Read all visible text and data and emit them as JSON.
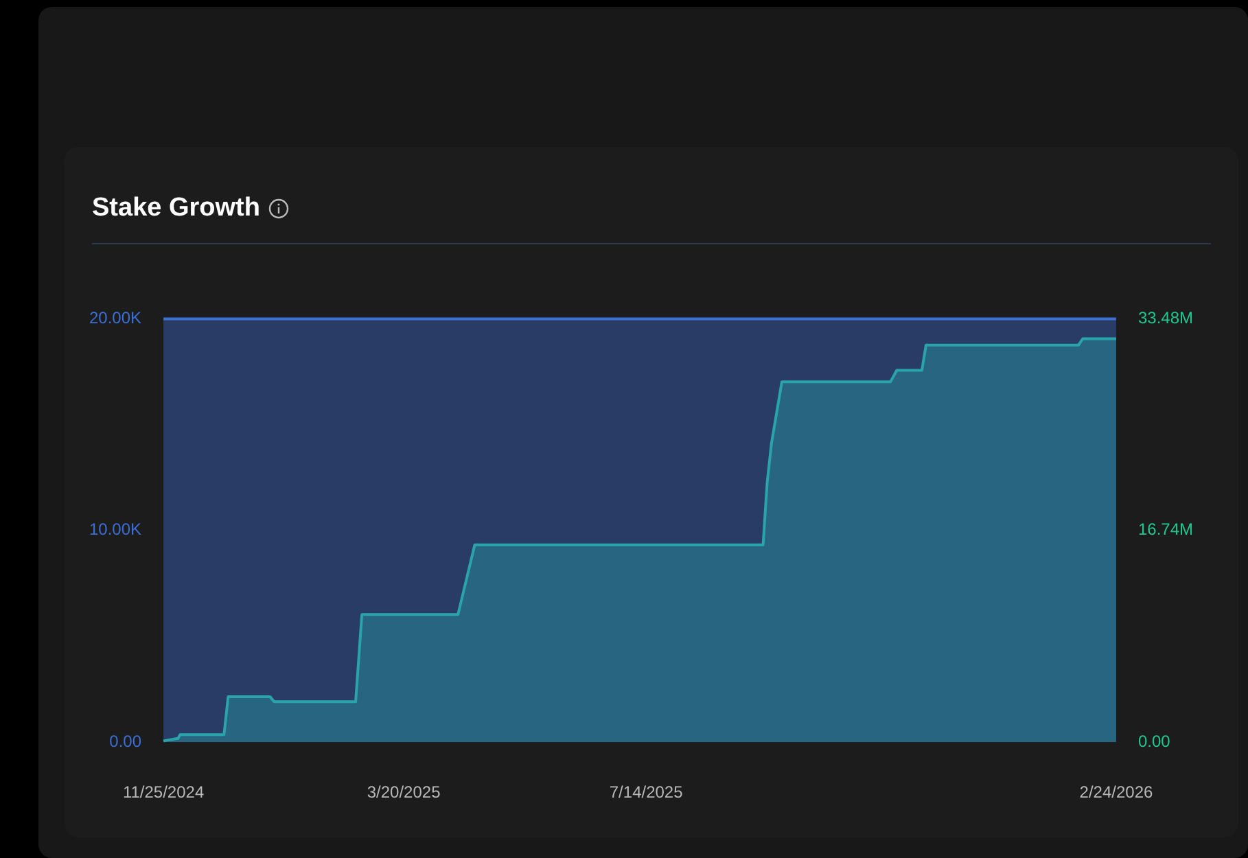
{
  "chart_data": {
    "type": "area",
    "title": "Stake Growth",
    "xlim": [
      "2024-11-25",
      "2026-02-24"
    ],
    "xticks": [
      {
        "value": "2024-11-25",
        "label": "11/25/2024"
      },
      {
        "value": "2025-03-20",
        "label": "3/20/2025"
      },
      {
        "value": "2025-07-14",
        "label": "7/14/2025"
      },
      {
        "value": "2026-02-24",
        "label": "2/24/2026"
      }
    ],
    "ylim": [
      0,
      20000
    ],
    "yticks": [
      {
        "value": 0,
        "label": "0.00"
      },
      {
        "value": 10000,
        "label": "10.00K"
      },
      {
        "value": 20000,
        "label": "20.00K"
      }
    ],
    "y2lim": [
      0,
      33.48
    ],
    "y2ticks": [
      {
        "value": 0,
        "label": "0.00"
      },
      {
        "value": 16.74,
        "label": "16.74M"
      },
      {
        "value": 33.48,
        "label": "33.48M"
      }
    ],
    "grid": false,
    "legend": false,
    "series": [
      {
        "color": "#3b6fd6",
        "x": [
          "2024-11-25",
          "2025-03-20",
          "2025-07-14",
          "2025-11-08",
          "2026-02-24"
        ],
        "values": [
          20000,
          20000,
          20000,
          20000,
          20000
        ]
      },
      {
        "color": "#1fc98e",
        "axis": "y2",
        "x": [
          "2024-11-25",
          "2024-12-02",
          "2024-12-03",
          "2024-12-24",
          "2024-12-26",
          "2025-01-15",
          "2025-01-17",
          "2025-02-25",
          "2025-02-28",
          "2025-04-15",
          "2025-04-23",
          "2025-09-08",
          "2025-09-10",
          "2025-09-12",
          "2025-09-17",
          "2025-11-08",
          "2025-11-11",
          "2025-11-23",
          "2025-11-25",
          "2026-02-06",
          "2026-02-08",
          "2026-02-24"
        ],
        "values": [
          0.1,
          0.3,
          0.6,
          0.6,
          3.6,
          3.6,
          3.2,
          3.2,
          10.1,
          10.1,
          15.6,
          15.6,
          20.6,
          23.6,
          28.5,
          28.5,
          29.4,
          29.4,
          31.4,
          31.4,
          31.9,
          31.9
        ]
      }
    ]
  }
}
